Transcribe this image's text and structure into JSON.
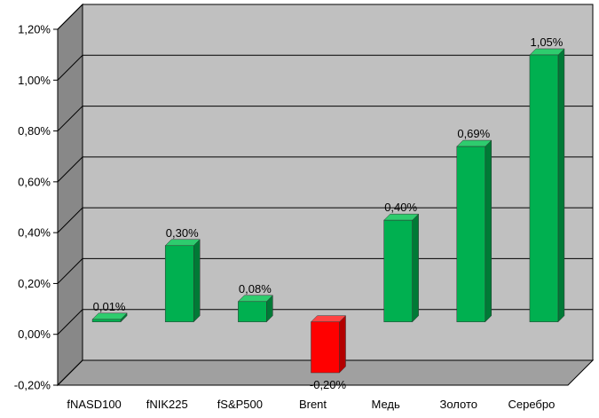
{
  "chart_data": {
    "type": "bar",
    "title": "",
    "xlabel": "",
    "ylabel": "",
    "categories": [
      "fNASD100",
      "fNIK225",
      "fS&P500",
      "Brent",
      "Медь",
      "Золото",
      "Серебро"
    ],
    "values": [
      0.01,
      0.3,
      0.08,
      -0.2,
      0.4,
      0.69,
      1.05
    ],
    "value_labels": [
      "0,01%",
      "0,30%",
      "0,08%",
      "-0,20%",
      "0,40%",
      "0,69%",
      "1,05%"
    ],
    "ylim": [
      -0.2,
      1.2
    ],
    "y_ticks": [
      -0.2,
      0.0,
      0.2,
      0.4,
      0.6,
      0.8,
      1.0,
      1.2
    ],
    "y_tick_labels": [
      "-0,20%",
      "0,00%",
      "0,20%",
      "0,40%",
      "0,60%",
      "0,80%",
      "1,00%",
      "1,20%"
    ],
    "grid": true,
    "legend": "none",
    "three_d": true,
    "colors": {
      "positive": "#00b050",
      "positive_side": "#007a36",
      "positive_top": "#2ecc6e",
      "negative": "#ff0000",
      "negative_side": "#b30000",
      "negative_top": "#ff4444",
      "back_wall": "#c0c0c0",
      "side_wall": "#888888",
      "floor": "#a0a0a0",
      "gridline": "#000000"
    }
  }
}
